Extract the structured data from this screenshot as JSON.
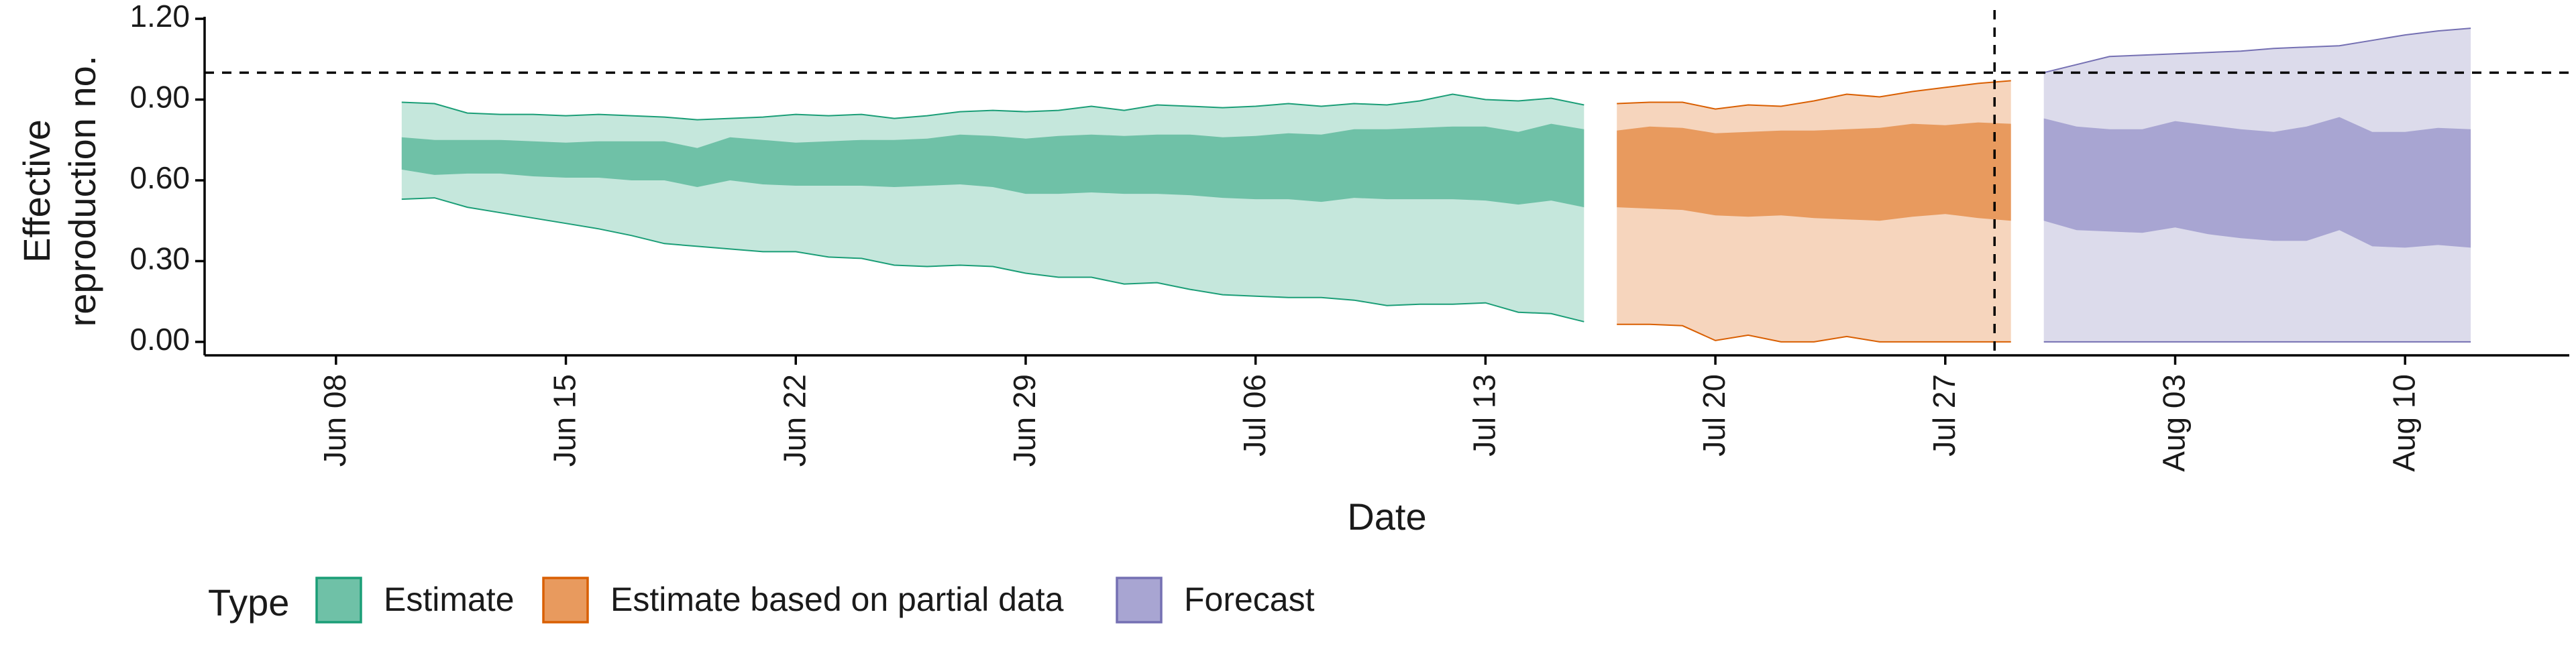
{
  "chart_data": {
    "type": "area",
    "xlabel": "Date",
    "ylabel_lines": [
      "Effective",
      "reproduction no."
    ],
    "x_ticks": [
      "Jun 08",
      "Jun 15",
      "Jun 22",
      "Jun 29",
      "Jul 06",
      "Jul 13",
      "Jul 20",
      "Jul 27",
      "Aug 03",
      "Aug 10"
    ],
    "y_ticks": [
      "0.00",
      "0.30",
      "0.60",
      "0.90",
      "1.20"
    ],
    "ylim": [
      -0.05,
      1.22
    ],
    "xlim": [
      "2020-06-04",
      "2020-08-15"
    ],
    "reference_line": {
      "y": 1.0,
      "style": "dashed"
    },
    "vertical_line": {
      "x": "2020-07-29",
      "style": "dashed"
    },
    "legend": {
      "title": "Type",
      "position": "bottom-left",
      "entries": [
        "Estimate",
        "Estimate based on partial data",
        "Forecast"
      ]
    },
    "series": [
      {
        "name": "Estimate",
        "fill_color": "#1b9e77",
        "inner_color": "#6fc1a7",
        "outer_color": "#c5e7dc",
        "x": [
          "2020-06-10",
          "2020-06-11",
          "2020-06-12",
          "2020-06-13",
          "2020-06-14",
          "2020-06-15",
          "2020-06-16",
          "2020-06-17",
          "2020-06-18",
          "2020-06-19",
          "2020-06-20",
          "2020-06-21",
          "2020-06-22",
          "2020-06-23",
          "2020-06-24",
          "2020-06-25",
          "2020-06-26",
          "2020-06-27",
          "2020-06-28",
          "2020-06-29",
          "2020-06-30",
          "2020-07-01",
          "2020-07-02",
          "2020-07-03",
          "2020-07-04",
          "2020-07-05",
          "2020-07-06",
          "2020-07-07",
          "2020-07-08",
          "2020-07-09",
          "2020-07-10",
          "2020-07-11",
          "2020-07-12",
          "2020-07-13",
          "2020-07-14",
          "2020-07-15",
          "2020-07-16"
        ],
        "upper90": [
          0.89,
          0.885,
          0.85,
          0.845,
          0.845,
          0.84,
          0.845,
          0.84,
          0.835,
          0.825,
          0.83,
          0.835,
          0.845,
          0.84,
          0.845,
          0.83,
          0.84,
          0.855,
          0.86,
          0.855,
          0.86,
          0.875,
          0.86,
          0.88,
          0.875,
          0.87,
          0.875,
          0.885,
          0.875,
          0.885,
          0.88,
          0.895,
          0.92,
          0.9,
          0.895,
          0.905,
          0.88
        ],
        "upper50": [
          0.76,
          0.75,
          0.75,
          0.75,
          0.745,
          0.74,
          0.745,
          0.745,
          0.745,
          0.72,
          0.76,
          0.75,
          0.74,
          0.745,
          0.75,
          0.75,
          0.755,
          0.77,
          0.765,
          0.755,
          0.765,
          0.77,
          0.765,
          0.77,
          0.77,
          0.76,
          0.765,
          0.775,
          0.77,
          0.79,
          0.79,
          0.795,
          0.8,
          0.8,
          0.78,
          0.81,
          0.79
        ],
        "lower50": [
          0.64,
          0.62,
          0.625,
          0.625,
          0.615,
          0.61,
          0.61,
          0.6,
          0.6,
          0.575,
          0.6,
          0.585,
          0.58,
          0.58,
          0.58,
          0.575,
          0.58,
          0.585,
          0.575,
          0.55,
          0.55,
          0.555,
          0.55,
          0.55,
          0.545,
          0.535,
          0.53,
          0.53,
          0.52,
          0.535,
          0.53,
          0.53,
          0.53,
          0.525,
          0.51,
          0.525,
          0.5
        ],
        "lower90": [
          0.53,
          0.535,
          0.5,
          0.48,
          0.46,
          0.44,
          0.42,
          0.395,
          0.365,
          0.355,
          0.345,
          0.335,
          0.335,
          0.315,
          0.31,
          0.285,
          0.28,
          0.285,
          0.28,
          0.255,
          0.24,
          0.24,
          0.215,
          0.22,
          0.195,
          0.175,
          0.17,
          0.165,
          0.165,
          0.155,
          0.135,
          0.14,
          0.14,
          0.145,
          0.11,
          0.105,
          0.075
        ]
      },
      {
        "name": "Estimate based on partial data",
        "fill_color": "#d95f02",
        "inner_color": "#e89a5e",
        "outer_color": "#f6d5bd",
        "x": [
          "2020-07-17",
          "2020-07-18",
          "2020-07-19",
          "2020-07-20",
          "2020-07-21",
          "2020-07-22",
          "2020-07-23",
          "2020-07-24",
          "2020-07-25",
          "2020-07-26",
          "2020-07-27",
          "2020-07-28",
          "2020-07-29"
        ],
        "upper90": [
          0.885,
          0.89,
          0.89,
          0.865,
          0.88,
          0.875,
          0.895,
          0.92,
          0.91,
          0.93,
          0.945,
          0.96,
          0.97
        ],
        "upper50": [
          0.785,
          0.8,
          0.795,
          0.775,
          0.78,
          0.785,
          0.785,
          0.79,
          0.795,
          0.81,
          0.805,
          0.815,
          0.81
        ],
        "lower50": [
          0.5,
          0.495,
          0.49,
          0.47,
          0.465,
          0.47,
          0.46,
          0.455,
          0.45,
          0.465,
          0.475,
          0.46,
          0.45
        ],
        "lower90": [
          0.065,
          0.065,
          0.06,
          0.005,
          0.025,
          0.0,
          0.0,
          0.02,
          0.0,
          0.0,
          0.0,
          0.0,
          0.0
        ]
      },
      {
        "name": "Forecast",
        "fill_color": "#7570b3",
        "inner_color": "#a8a5d2",
        "outer_color": "#dcdbeb",
        "x": [
          "2020-07-30",
          "2020-07-31",
          "2020-08-01",
          "2020-08-02",
          "2020-08-03",
          "2020-08-04",
          "2020-08-05",
          "2020-08-06",
          "2020-08-07",
          "2020-08-08",
          "2020-08-09",
          "2020-08-10",
          "2020-08-11",
          "2020-08-12"
        ],
        "upper90": [
          1.0,
          1.03,
          1.06,
          1.065,
          1.07,
          1.075,
          1.08,
          1.09,
          1.095,
          1.1,
          1.12,
          1.14,
          1.155,
          1.165
        ],
        "upper50": [
          0.83,
          0.8,
          0.79,
          0.79,
          0.82,
          0.805,
          0.79,
          0.78,
          0.8,
          0.835,
          0.78,
          0.78,
          0.795,
          0.79
        ],
        "lower50": [
          0.45,
          0.415,
          0.41,
          0.405,
          0.425,
          0.4,
          0.385,
          0.375,
          0.375,
          0.415,
          0.355,
          0.35,
          0.36,
          0.35
        ],
        "lower90": [
          0.0,
          0.0,
          0.0,
          0.0,
          0.0,
          0.0,
          0.0,
          0.0,
          0.0,
          0.0,
          0.0,
          0.0,
          0.0,
          0.0
        ]
      }
    ]
  }
}
